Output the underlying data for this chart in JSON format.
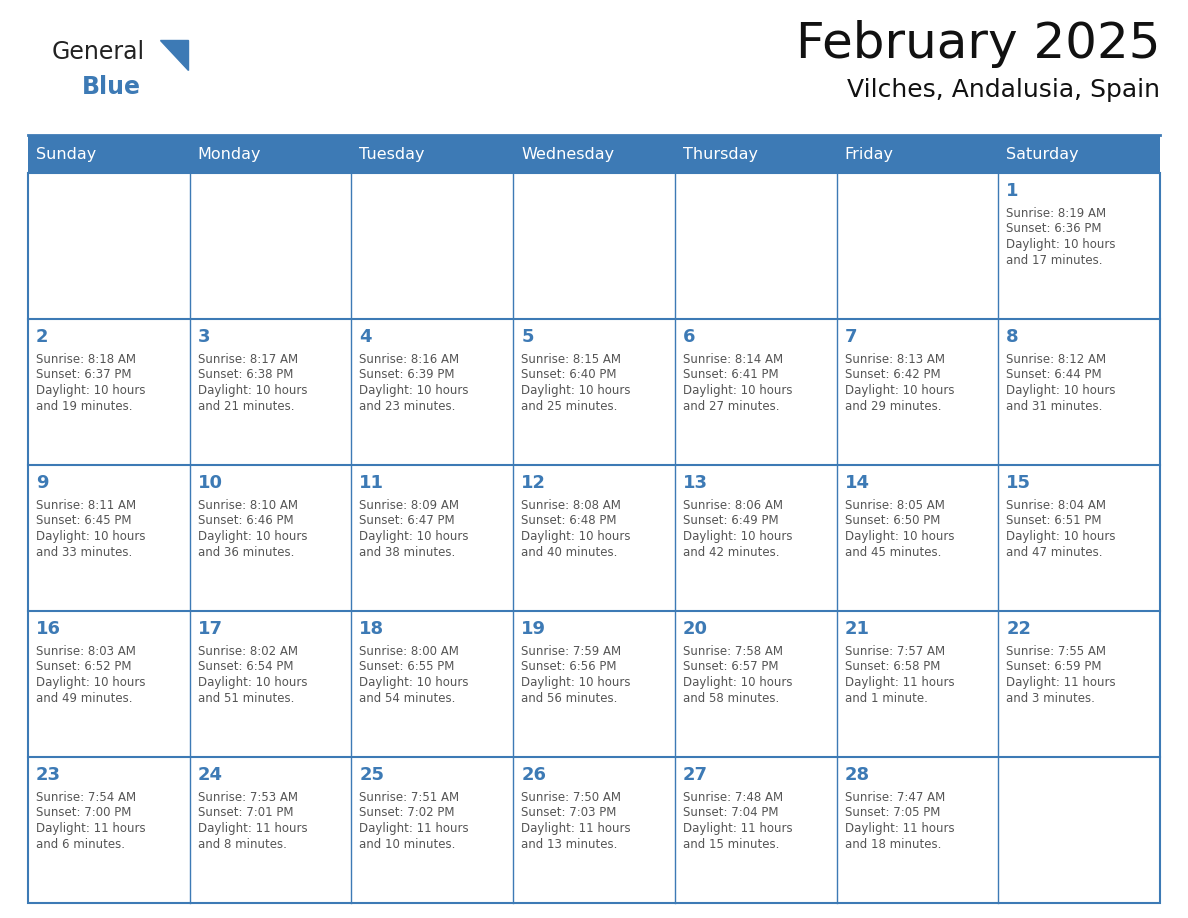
{
  "title": "February 2025",
  "subtitle": "Vilches, Andalusia, Spain",
  "header_bg_color": "#3d7ab5",
  "header_text_color": "#ffffff",
  "grid_color": "#3d7ab5",
  "day_number_color": "#3d7ab5",
  "text_color": "#555555",
  "title_color": "#111111",
  "days_of_week": [
    "Sunday",
    "Monday",
    "Tuesday",
    "Wednesday",
    "Thursday",
    "Friday",
    "Saturday"
  ],
  "calendar_data": [
    [
      null,
      null,
      null,
      null,
      null,
      null,
      {
        "day": 1,
        "sunrise": "8:19 AM",
        "sunset": "6:36 PM",
        "daylight": "10 hours and 17 minutes."
      }
    ],
    [
      {
        "day": 2,
        "sunrise": "8:18 AM",
        "sunset": "6:37 PM",
        "daylight": "10 hours and 19 minutes."
      },
      {
        "day": 3,
        "sunrise": "8:17 AM",
        "sunset": "6:38 PM",
        "daylight": "10 hours and 21 minutes."
      },
      {
        "day": 4,
        "sunrise": "8:16 AM",
        "sunset": "6:39 PM",
        "daylight": "10 hours and 23 minutes."
      },
      {
        "day": 5,
        "sunrise": "8:15 AM",
        "sunset": "6:40 PM",
        "daylight": "10 hours and 25 minutes."
      },
      {
        "day": 6,
        "sunrise": "8:14 AM",
        "sunset": "6:41 PM",
        "daylight": "10 hours and 27 minutes."
      },
      {
        "day": 7,
        "sunrise": "8:13 AM",
        "sunset": "6:42 PM",
        "daylight": "10 hours and 29 minutes."
      },
      {
        "day": 8,
        "sunrise": "8:12 AM",
        "sunset": "6:44 PM",
        "daylight": "10 hours and 31 minutes."
      }
    ],
    [
      {
        "day": 9,
        "sunrise": "8:11 AM",
        "sunset": "6:45 PM",
        "daylight": "10 hours and 33 minutes."
      },
      {
        "day": 10,
        "sunrise": "8:10 AM",
        "sunset": "6:46 PM",
        "daylight": "10 hours and 36 minutes."
      },
      {
        "day": 11,
        "sunrise": "8:09 AM",
        "sunset": "6:47 PM",
        "daylight": "10 hours and 38 minutes."
      },
      {
        "day": 12,
        "sunrise": "8:08 AM",
        "sunset": "6:48 PM",
        "daylight": "10 hours and 40 minutes."
      },
      {
        "day": 13,
        "sunrise": "8:06 AM",
        "sunset": "6:49 PM",
        "daylight": "10 hours and 42 minutes."
      },
      {
        "day": 14,
        "sunrise": "8:05 AM",
        "sunset": "6:50 PM",
        "daylight": "10 hours and 45 minutes."
      },
      {
        "day": 15,
        "sunrise": "8:04 AM",
        "sunset": "6:51 PM",
        "daylight": "10 hours and 47 minutes."
      }
    ],
    [
      {
        "day": 16,
        "sunrise": "8:03 AM",
        "sunset": "6:52 PM",
        "daylight": "10 hours and 49 minutes."
      },
      {
        "day": 17,
        "sunrise": "8:02 AM",
        "sunset": "6:54 PM",
        "daylight": "10 hours and 51 minutes."
      },
      {
        "day": 18,
        "sunrise": "8:00 AM",
        "sunset": "6:55 PM",
        "daylight": "10 hours and 54 minutes."
      },
      {
        "day": 19,
        "sunrise": "7:59 AM",
        "sunset": "6:56 PM",
        "daylight": "10 hours and 56 minutes."
      },
      {
        "day": 20,
        "sunrise": "7:58 AM",
        "sunset": "6:57 PM",
        "daylight": "10 hours and 58 minutes."
      },
      {
        "day": 21,
        "sunrise": "7:57 AM",
        "sunset": "6:58 PM",
        "daylight": "11 hours and 1 minute."
      },
      {
        "day": 22,
        "sunrise": "7:55 AM",
        "sunset": "6:59 PM",
        "daylight": "11 hours and 3 minutes."
      }
    ],
    [
      {
        "day": 23,
        "sunrise": "7:54 AM",
        "sunset": "7:00 PM",
        "daylight": "11 hours and 6 minutes."
      },
      {
        "day": 24,
        "sunrise": "7:53 AM",
        "sunset": "7:01 PM",
        "daylight": "11 hours and 8 minutes."
      },
      {
        "day": 25,
        "sunrise": "7:51 AM",
        "sunset": "7:02 PM",
        "daylight": "11 hours and 10 minutes."
      },
      {
        "day": 26,
        "sunrise": "7:50 AM",
        "sunset": "7:03 PM",
        "daylight": "11 hours and 13 minutes."
      },
      {
        "day": 27,
        "sunrise": "7:48 AM",
        "sunset": "7:04 PM",
        "daylight": "11 hours and 15 minutes."
      },
      {
        "day": 28,
        "sunrise": "7:47 AM",
        "sunset": "7:05 PM",
        "daylight": "11 hours and 18 minutes."
      },
      null
    ]
  ],
  "logo_text_general": "General",
  "logo_text_blue": "Blue",
  "logo_color_general": "#222222",
  "logo_color_blue": "#3d7ab5",
  "logo_triangle_color": "#3d7ab5"
}
